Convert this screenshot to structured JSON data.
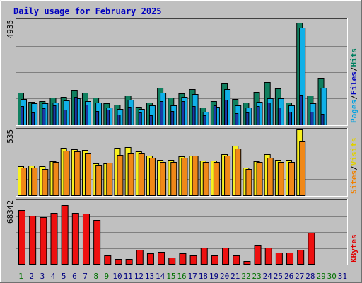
{
  "title": "Daily usage for February 2025",
  "chart_data": [
    {
      "type": "bar",
      "panel": "hits-files-pages",
      "ymax_label": "4935",
      "ymax": 4935,
      "axis_label_parts": [
        {
          "text": "Pages",
          "color": "#00a0e0"
        },
        {
          "text": "/",
          "color": "#000000"
        },
        {
          "text": "Files",
          "color": "#0000c0"
        },
        {
          "text": "/",
          "color": "#000000"
        },
        {
          "text": "Hits",
          "color": "#008060"
        }
      ],
      "series": [
        {
          "name": "Hits",
          "color": "#108060",
          "values": [
            1490,
            1080,
            1110,
            1260,
            1310,
            1630,
            1490,
            1260,
            1010,
            930,
            1370,
            820,
            1050,
            1730,
            1280,
            1460,
            1680,
            790,
            1110,
            1940,
            1190,
            1030,
            1520,
            1990,
            1700,
            1050,
            4800,
            1370,
            2190,
            0,
            0
          ]
        },
        {
          "name": "Files",
          "color": "#1a3aa8",
          "values": [
            870,
            570,
            780,
            890,
            700,
            1300,
            950,
            640,
            690,
            480,
            850,
            580,
            440,
            1100,
            620,
            1110,
            870,
            450,
            910,
            1180,
            530,
            580,
            870,
            1020,
            810,
            610,
            1400,
            590,
            490,
            0,
            0
          ]
        },
        {
          "name": "Pages",
          "color": "#10b0e8",
          "values": [
            1200,
            990,
            1000,
            1040,
            1120,
            1250,
            1100,
            1050,
            790,
            740,
            1180,
            720,
            890,
            1510,
            910,
            1290,
            1450,
            610,
            850,
            1680,
            910,
            790,
            1080,
            1230,
            1220,
            890,
            4570,
            1000,
            1750,
            0,
            0
          ]
        }
      ]
    },
    {
      "type": "bar",
      "panel": "visits-sites",
      "ymax_label": "535",
      "ymax": 535,
      "axis_label_parts": [
        {
          "text": "Sites",
          "color": "#f08000"
        },
        {
          "text": "/",
          "color": "#000000"
        },
        {
          "text": "Visits",
          "color": "#e0d000"
        }
      ],
      "series": [
        {
          "name": "Visits",
          "color": "#f8f020",
          "values": [
            235,
            243,
            235,
            276,
            383,
            376,
            370,
            257,
            257,
            383,
            390,
            354,
            325,
            290,
            290,
            317,
            325,
            282,
            282,
            335,
            402,
            223,
            274,
            335,
            290,
            290,
            535,
            0,
            0,
            0,
            0
          ]
        },
        {
          "name": "Sites",
          "color": "#f08818",
          "values": [
            227,
            227,
            215,
            268,
            360,
            356,
            348,
            250,
            263,
            326,
            348,
            348,
            305,
            271,
            271,
            305,
            320,
            271,
            271,
            325,
            380,
            212,
            268,
            305,
            268,
            268,
            440,
            0,
            0,
            0,
            0
          ]
        }
      ]
    },
    {
      "type": "bar",
      "panel": "kbytes",
      "ymax_label": "68342",
      "ymax": 68342,
      "axis_label_parts": [
        {
          "text": "KBytes",
          "color": "#e00000"
        }
      ],
      "series": [
        {
          "name": "KBytes",
          "color": "#ee1010",
          "values": [
            58000,
            52000,
            50000,
            55000,
            63000,
            55000,
            54000,
            47000,
            9200,
            5100,
            5100,
            15300,
            11200,
            12800,
            7200,
            11200,
            9200,
            17300,
            9200,
            17300,
            9200,
            3100,
            20400,
            17300,
            12200,
            12200,
            15300,
            33600,
            0,
            0,
            0
          ]
        }
      ]
    }
  ],
  "days": [
    {
      "label": "1",
      "color": "#007000"
    },
    {
      "label": "2",
      "color": "#000080"
    },
    {
      "label": "3",
      "color": "#000080"
    },
    {
      "label": "4",
      "color": "#000080"
    },
    {
      "label": "5",
      "color": "#000080"
    },
    {
      "label": "6",
      "color": "#000080"
    },
    {
      "label": "7",
      "color": "#000080"
    },
    {
      "label": "8",
      "color": "#007000"
    },
    {
      "label": "9",
      "color": "#007000"
    },
    {
      "label": "10",
      "color": "#000080"
    },
    {
      "label": "11",
      "color": "#000080"
    },
    {
      "label": "12",
      "color": "#000080"
    },
    {
      "label": "13",
      "color": "#000080"
    },
    {
      "label": "14",
      "color": "#000080"
    },
    {
      "label": "15",
      "color": "#007000"
    },
    {
      "label": "16",
      "color": "#007000"
    },
    {
      "label": "17",
      "color": "#000080"
    },
    {
      "label": "18",
      "color": "#000080"
    },
    {
      "label": "19",
      "color": "#000080"
    },
    {
      "label": "20",
      "color": "#000080"
    },
    {
      "label": "21",
      "color": "#000080"
    },
    {
      "label": "22",
      "color": "#007000"
    },
    {
      "label": "23",
      "color": "#007000"
    },
    {
      "label": "24",
      "color": "#000080"
    },
    {
      "label": "25",
      "color": "#000080"
    },
    {
      "label": "26",
      "color": "#000080"
    },
    {
      "label": "27",
      "color": "#000080"
    },
    {
      "label": "28",
      "color": "#000080"
    },
    {
      "label": "29",
      "color": "#007000"
    },
    {
      "label": "30",
      "color": "#007000"
    },
    {
      "label": "31",
      "color": "#000080"
    }
  ]
}
